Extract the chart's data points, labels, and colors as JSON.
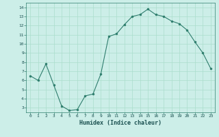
{
  "x": [
    0,
    1,
    2,
    3,
    4,
    5,
    6,
    7,
    8,
    9,
    10,
    11,
    12,
    13,
    14,
    15,
    16,
    17,
    18,
    19,
    20,
    21,
    22,
    23
  ],
  "y": [
    6.5,
    6.0,
    7.8,
    5.5,
    3.2,
    2.7,
    2.8,
    4.3,
    4.5,
    6.7,
    10.8,
    11.1,
    12.1,
    13.0,
    13.2,
    13.8,
    13.2,
    13.0,
    12.5,
    12.2,
    11.5,
    10.2,
    9.0,
    7.3
  ],
  "xlabel": "Humidex (Indice chaleur)",
  "ylim": [
    2.5,
    14.5
  ],
  "xlim": [
    -0.5,
    23.5
  ],
  "yticks": [
    3,
    4,
    5,
    6,
    7,
    8,
    9,
    10,
    11,
    12,
    13,
    14
  ],
  "xticks": [
    0,
    1,
    2,
    3,
    4,
    5,
    6,
    7,
    8,
    9,
    10,
    11,
    12,
    13,
    14,
    15,
    16,
    17,
    18,
    19,
    20,
    21,
    22,
    23
  ],
  "line_color": "#2e7d6d",
  "marker": "o",
  "bg_color": "#cceee8",
  "grid_color": "#aaddcc",
  "axis_color": "#2e7d6d",
  "label_color": "#1a5050"
}
